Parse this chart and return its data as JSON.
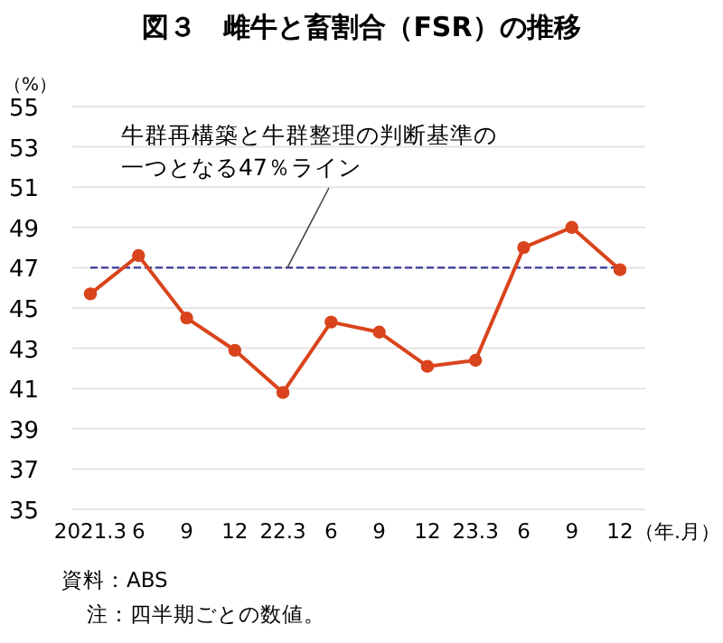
{
  "chart_data": {
    "type": "line",
    "title": "図３　雌牛と畜割合（FSR）の推移",
    "ylabel": "（%）",
    "xlabel": "（年.月）",
    "categories": [
      "2021.3",
      "6",
      "9",
      "12",
      "22.3",
      "6",
      "9",
      "12",
      "23.3",
      "6",
      "9",
      "12"
    ],
    "series": [
      {
        "color": "#d9441c",
        "values": [
          45.7,
          47.6,
          44.5,
          42.9,
          40.8,
          44.3,
          43.8,
          42.1,
          42.4,
          48.0,
          49.0,
          46.9
        ]
      }
    ],
    "ylim": [
      35,
      55
    ],
    "yticks": [
      35,
      37,
      39,
      41,
      43,
      45,
      47,
      49,
      51,
      53,
      55
    ],
    "grid": "y",
    "marker": "circle",
    "line_style": "solid",
    "ref_lines": [
      {
        "axis": "y",
        "value": 47,
        "label": "牛群再構築と牛群整理の判断基準の一つとなる47％ライン",
        "color": "#3a3a9a",
        "line_style": "dashed"
      }
    ],
    "annotations": [
      "資料：ABS",
      "注：四半期ごとの数値。"
    ]
  }
}
